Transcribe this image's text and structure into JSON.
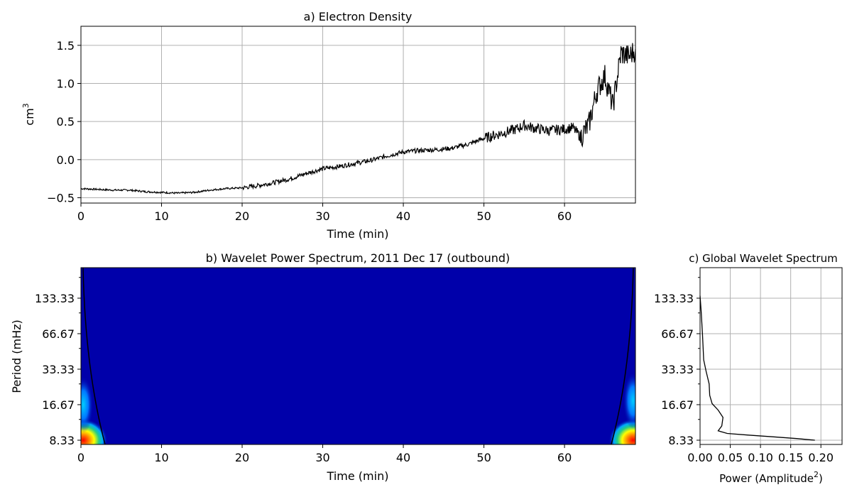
{
  "chart_data": [
    {
      "type": "line",
      "title": "a) Electron Density",
      "xlabel": "Time (min)",
      "ylabel": "cm",
      "ylabel_superscript": "3",
      "xlim": [
        0,
        68.8
      ],
      "ylim": [
        -0.57,
        1.75
      ],
      "xticks": [
        0,
        10,
        20,
        30,
        40,
        50,
        60
      ],
      "yticks": [
        -0.5,
        0.0,
        0.5,
        1.0,
        1.5
      ],
      "ytick_labels": [
        "−0.5",
        "0.0",
        "0.5",
        "1.0",
        "1.5"
      ],
      "grid": true,
      "line_color": "#000000",
      "series": [
        {
          "x": [
            0,
            2,
            4,
            6,
            8,
            10,
            12,
            14,
            16,
            18,
            20,
            22,
            24,
            26,
            28,
            30,
            32,
            34,
            36,
            38,
            40,
            42,
            44,
            46,
            48,
            50,
            52,
            54,
            55,
            56,
            58,
            60,
            61,
            62,
            63,
            64,
            65,
            66,
            67,
            68,
            68.8
          ],
          "values": [
            -0.38,
            -0.39,
            -0.4,
            -0.4,
            -0.42,
            -0.43,
            -0.44,
            -0.43,
            -0.4,
            -0.38,
            -0.37,
            -0.34,
            -0.3,
            -0.25,
            -0.18,
            -0.12,
            -0.09,
            -0.05,
            -0.01,
            0.05,
            0.1,
            0.12,
            0.13,
            0.15,
            0.2,
            0.28,
            0.34,
            0.4,
            0.45,
            0.42,
            0.38,
            0.4,
            0.42,
            0.3,
            0.45,
            0.9,
            1.1,
            0.7,
            1.4,
            1.35,
            1.45
          ]
        }
      ]
    },
    {
      "type": "heatmap",
      "title": "b) Wavelet Power Spectrum, 2011 Dec 17 (outbound)",
      "xlabel": "Time (min)",
      "ylabel": "Period (mHz)",
      "xlim": [
        0,
        68.8
      ],
      "xticks": [
        0,
        10,
        20,
        30,
        40,
        50,
        60
      ],
      "yticks": [
        "133.33",
        "66.67",
        "33.33",
        "16.67",
        "8.33"
      ],
      "ylim_labels": [
        "8.33",
        "200"
      ],
      "log_scale_y": true,
      "background_color": "#0000aa",
      "hotspots": [
        {
          "x": 0.3,
          "period": 8.33,
          "level": "high"
        },
        {
          "x": 68.5,
          "period": 8.33,
          "level": "high"
        },
        {
          "x": 0.3,
          "period": 16.67,
          "level": "low"
        },
        {
          "x": 68.5,
          "period": 18,
          "level": "low"
        }
      ],
      "cone_of_influence": true
    },
    {
      "type": "line",
      "title": "c) Global Wavelet Spectrum",
      "xlabel": "Power (Amplitude",
      "xlabel_superscript": "2",
      "xlabel_suffix": ")",
      "xlim": [
        0,
        0.235
      ],
      "xticks": [
        0.0,
        0.05,
        0.1,
        0.15,
        0.2
      ],
      "xtick_labels": [
        "0.00",
        "0.05",
        "0.10",
        "0.15",
        "0.20"
      ],
      "yticks": [
        "133.33",
        "66.67",
        "33.33",
        "16.67",
        "8.33"
      ],
      "log_scale_y": true,
      "grid": true,
      "series": [
        {
          "power": [
            0.0,
            0.002,
            0.004,
            0.006,
            0.01,
            0.015,
            0.016,
            0.02,
            0.03,
            0.038,
            0.036,
            0.03,
            0.045,
            0.08,
            0.12,
            0.16,
            0.19
          ],
          "period": [
            140,
            100,
            66,
            40,
            32,
            25,
            20,
            17,
            15,
            13,
            11,
            10,
            9.5,
            9.2,
            8.9,
            8.6,
            8.33
          ]
        }
      ]
    }
  ]
}
